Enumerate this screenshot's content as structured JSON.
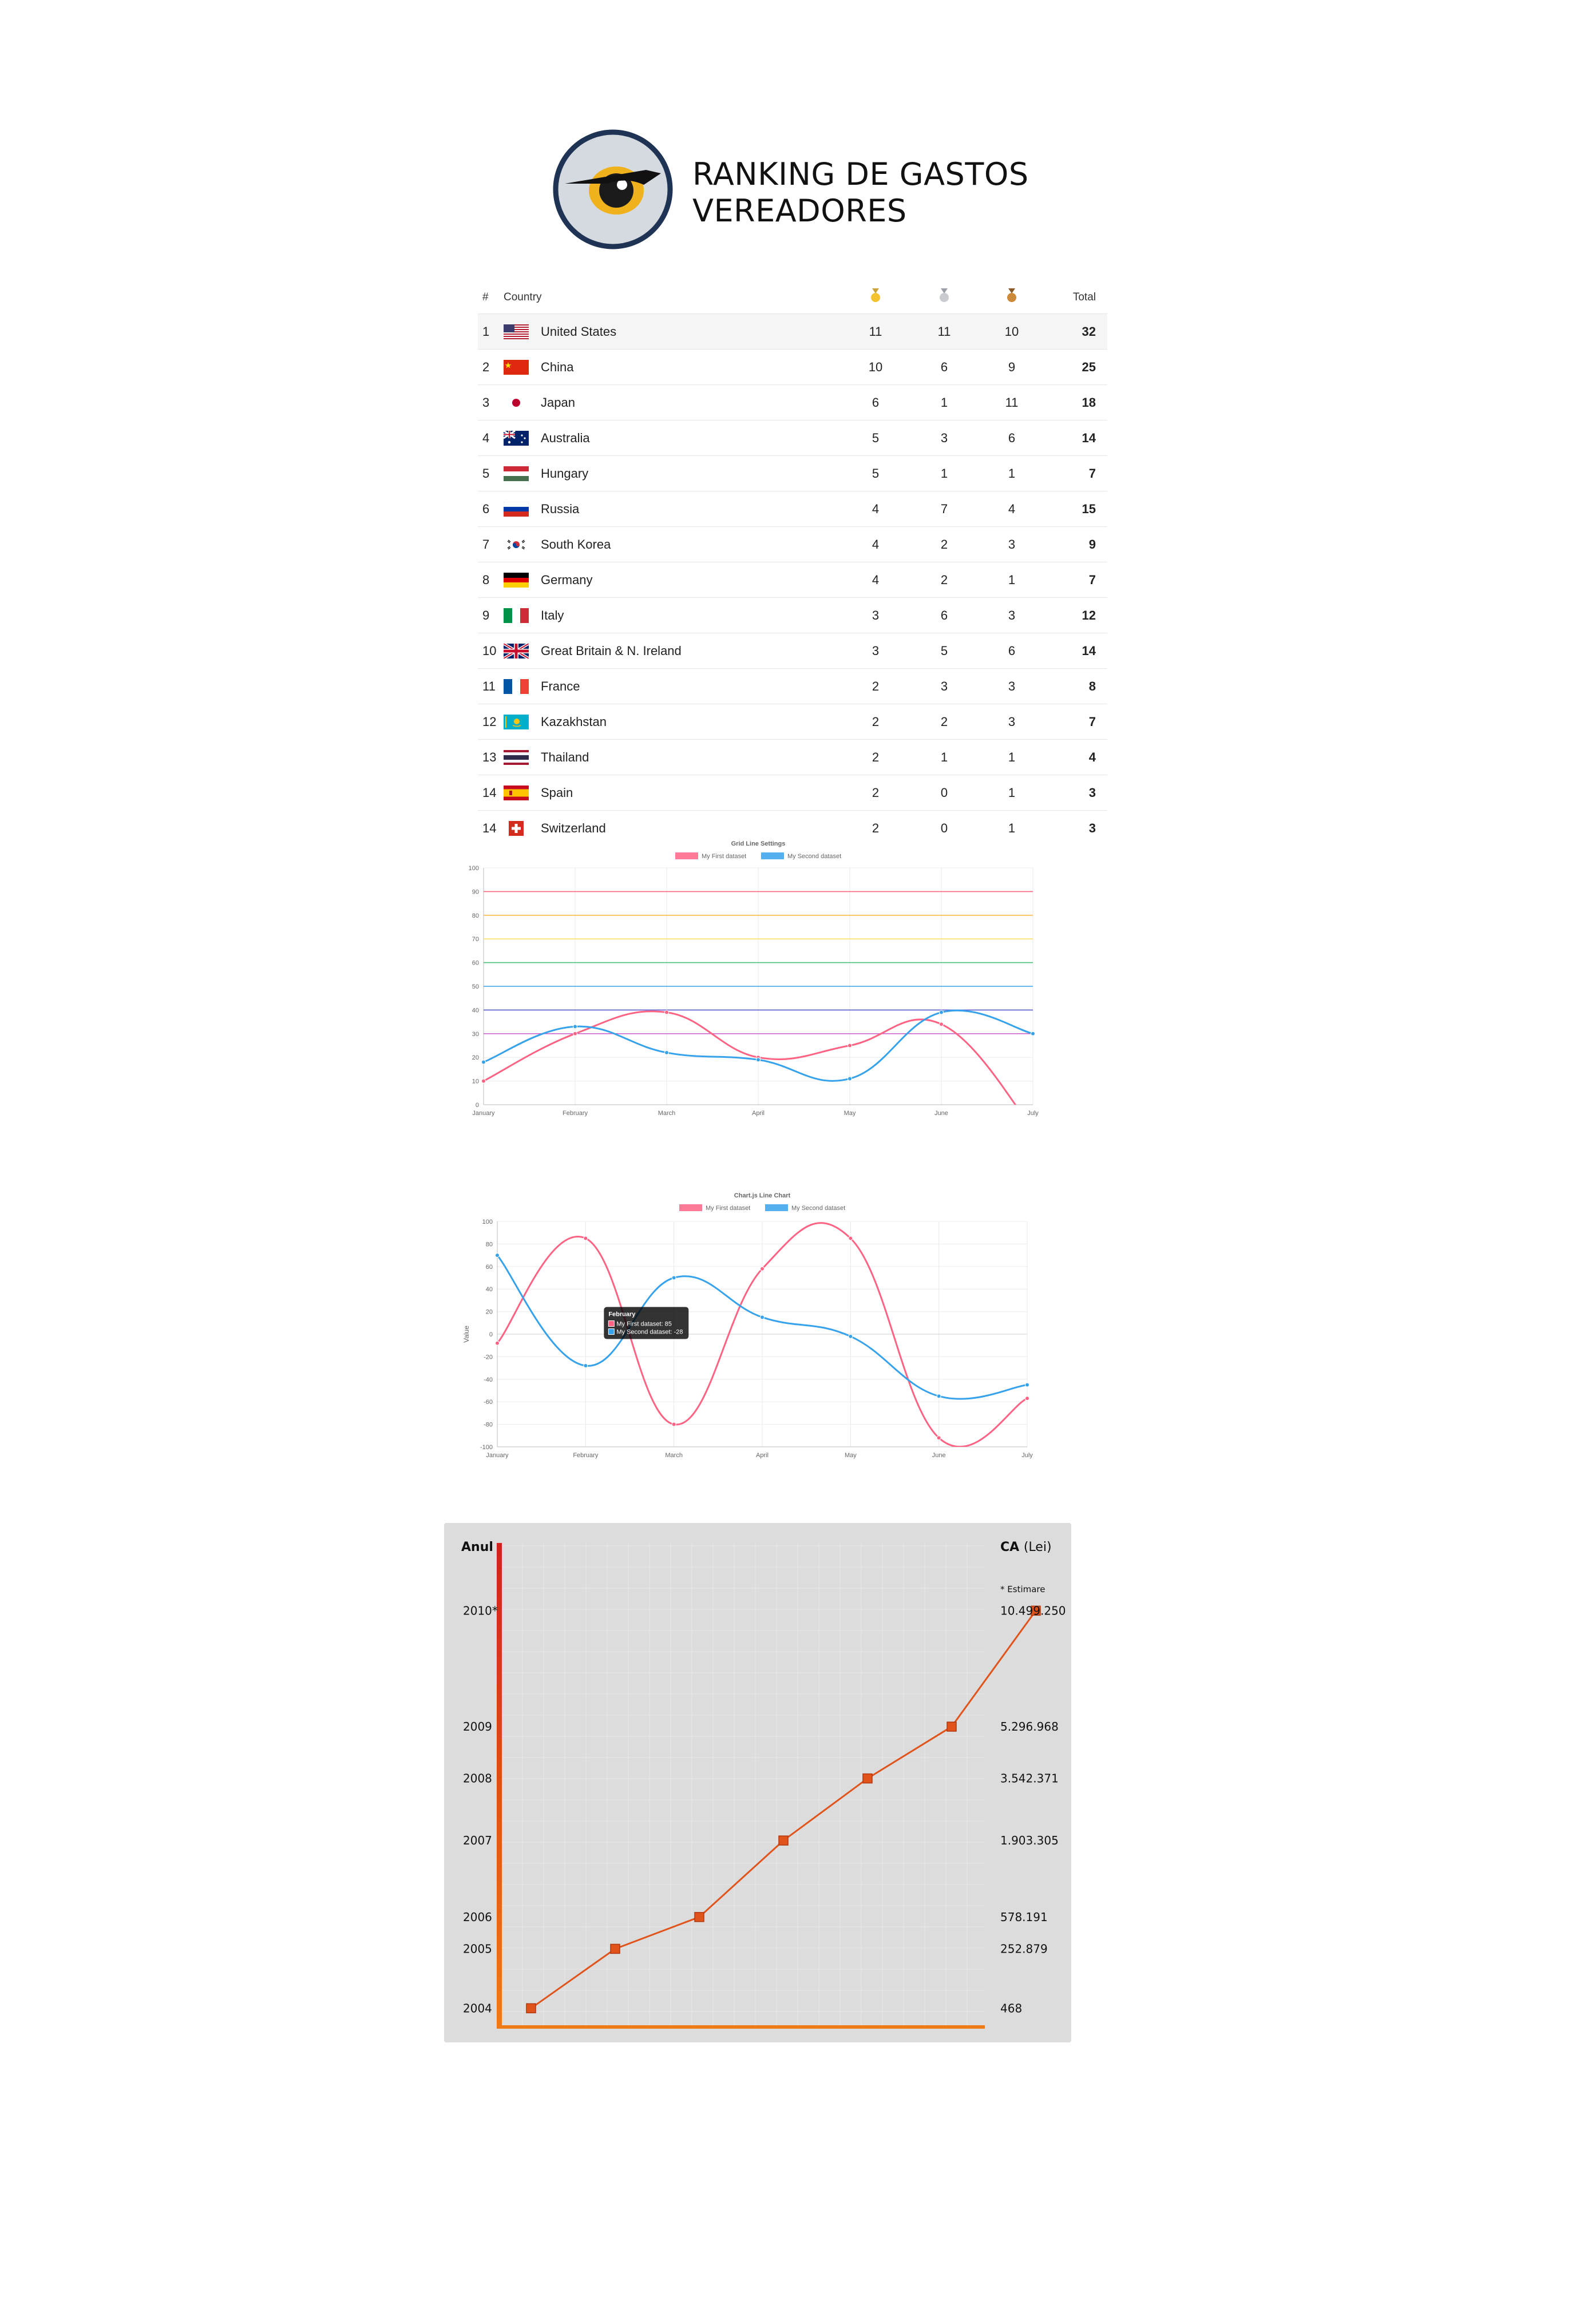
{
  "header": {
    "title_line1": "RANKING DE GASTOS",
    "title_line2": "VEREADORES",
    "logo_icon": "owl-eye-icon"
  },
  "medal_table": {
    "columns": {
      "rank": "#",
      "country": "Country",
      "gold": "gold-medal-icon",
      "silver": "silver-medal-icon",
      "bronze": "bronze-medal-icon",
      "total": "Total"
    },
    "rows": [
      {
        "rank": "1",
        "country": "United States",
        "flag": "flag-us-icon",
        "gold": "11",
        "silver": "11",
        "bronze": "10",
        "total": "32"
      },
      {
        "rank": "2",
        "country": "China",
        "flag": "flag-cn-icon",
        "gold": "10",
        "silver": "6",
        "bronze": "9",
        "total": "25"
      },
      {
        "rank": "3",
        "country": "Japan",
        "flag": "flag-jp-icon",
        "gold": "6",
        "silver": "1",
        "bronze": "11",
        "total": "18"
      },
      {
        "rank": "4",
        "country": "Australia",
        "flag": "flag-au-icon",
        "gold": "5",
        "silver": "3",
        "bronze": "6",
        "total": "14"
      },
      {
        "rank": "5",
        "country": "Hungary",
        "flag": "flag-hu-icon",
        "gold": "5",
        "silver": "1",
        "bronze": "1",
        "total": "7"
      },
      {
        "rank": "6",
        "country": "Russia",
        "flag": "flag-ru-icon",
        "gold": "4",
        "silver": "7",
        "bronze": "4",
        "total": "15"
      },
      {
        "rank": "7",
        "country": "South Korea",
        "flag": "flag-kr-icon",
        "gold": "4",
        "silver": "2",
        "bronze": "3",
        "total": "9"
      },
      {
        "rank": "8",
        "country": "Germany",
        "flag": "flag-de-icon",
        "gold": "4",
        "silver": "2",
        "bronze": "1",
        "total": "7"
      },
      {
        "rank": "9",
        "country": "Italy",
        "flag": "flag-it-icon",
        "gold": "3",
        "silver": "6",
        "bronze": "3",
        "total": "12"
      },
      {
        "rank": "10",
        "country": "Great Britain & N. Ireland",
        "flag": "flag-gb-icon",
        "gold": "3",
        "silver": "5",
        "bronze": "6",
        "total": "14"
      },
      {
        "rank": "11",
        "country": "France",
        "flag": "flag-fr-icon",
        "gold": "2",
        "silver": "3",
        "bronze": "3",
        "total": "8"
      },
      {
        "rank": "12",
        "country": "Kazakhstan",
        "flag": "flag-kz-icon",
        "gold": "2",
        "silver": "2",
        "bronze": "3",
        "total": "7"
      },
      {
        "rank": "13",
        "country": "Thailand",
        "flag": "flag-th-icon",
        "gold": "2",
        "silver": "1",
        "bronze": "1",
        "total": "4"
      },
      {
        "rank": "14",
        "country": "Spain",
        "flag": "flag-es-icon",
        "gold": "2",
        "silver": "0",
        "bronze": "1",
        "total": "3"
      },
      {
        "rank": "14",
        "country": "Switzerland",
        "flag": "flag-ch-icon",
        "gold": "2",
        "silver": "0",
        "bronze": "1",
        "total": "3"
      }
    ]
  },
  "chart_data": [
    {
      "type": "line",
      "title": "Grid Line Settings",
      "categories": [
        "January",
        "February",
        "March",
        "April",
        "May",
        "June",
        "July"
      ],
      "ylim": [
        0,
        100
      ],
      "yticks": [
        "0",
        "10",
        "20",
        "30",
        "40",
        "50",
        "60",
        "70",
        "80",
        "90",
        "100"
      ],
      "series": [
        {
          "name": "My First dataset",
          "color": "#ff6384",
          "values": [
            10,
            30,
            39,
            20,
            25,
            34,
            -10
          ]
        },
        {
          "name": "My Second dataset",
          "color": "#36a2eb",
          "values": [
            18,
            33,
            22,
            19,
            11,
            39,
            30
          ]
        }
      ],
      "grid_lines": [
        {
          "y": 90,
          "color": "#ff6384"
        },
        {
          "y": 80,
          "color": "#ffb84d"
        },
        {
          "y": 70,
          "color": "#ffe066"
        },
        {
          "y": 60,
          "color": "#4bc07a"
        },
        {
          "y": 50,
          "color": "#36a2eb"
        },
        {
          "y": 40,
          "color": "#5a5acd"
        },
        {
          "y": 30,
          "color": "#cc66cc"
        }
      ],
      "grid": true,
      "legend": "top"
    },
    {
      "type": "line",
      "title": "Chart.js Line Chart",
      "ylabel": "Value",
      "categories": [
        "January",
        "February",
        "March",
        "April",
        "May",
        "June",
        "July"
      ],
      "ylim": [
        -100,
        100
      ],
      "yticks": [
        "-100",
        "-80",
        "-60",
        "-40",
        "-20",
        "0",
        "20",
        "40",
        "60",
        "80",
        "100"
      ],
      "series": [
        {
          "name": "My First dataset",
          "color": "#ff6384",
          "values": [
            -8,
            85,
            -80,
            58,
            85,
            -92,
            -57
          ]
        },
        {
          "name": "My Second dataset",
          "color": "#36a2eb",
          "values": [
            70,
            -28,
            50,
            15,
            -2,
            -55,
            -45
          ]
        }
      ],
      "tooltip": {
        "title": "February",
        "lines": [
          "My First dataset: 85",
          "My Second dataset: -28"
        ]
      },
      "grid": true,
      "legend": "top"
    },
    {
      "type": "line",
      "title": "",
      "xlabel": "Anul",
      "ylabel": "CA (Lei)",
      "note": "* Estimare",
      "categories": [
        "2004",
        "2005",
        "2006",
        "2007",
        "2008",
        "2009",
        "2010*"
      ],
      "values": [
        468,
        252879,
        578191,
        1903305,
        3542371,
        5296968,
        10499250
      ],
      "value_labels": [
        "468",
        "252.879",
        "578.191",
        "1.903.305",
        "3.542.371",
        "5.296.968",
        "10.499.250"
      ],
      "line_color": "#e0531a",
      "background": "#dcdcdc"
    }
  ]
}
